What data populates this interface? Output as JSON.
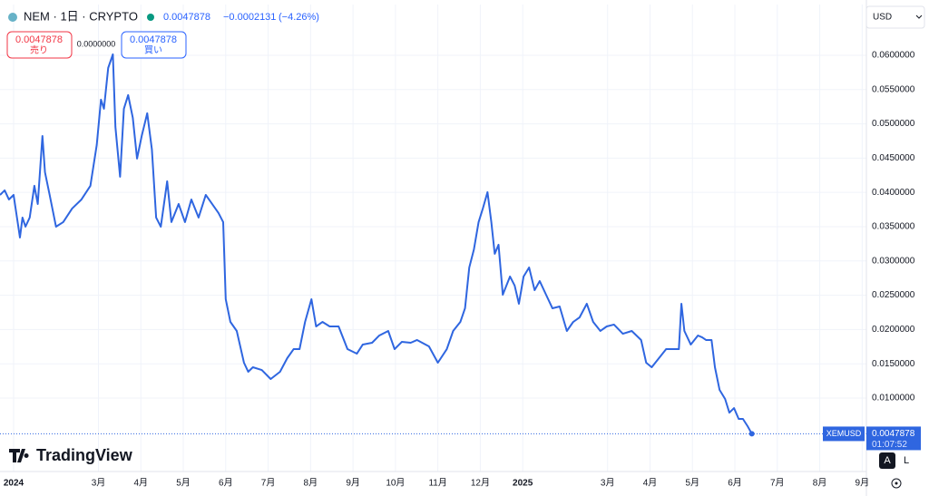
{
  "chart_data": {
    "type": "line",
    "title": "NEM · 1日 · CRYPTO",
    "change": "−0.0002131",
    "change_pct": "(−4.26%)",
    "sell_label": "売り",
    "buy_label": "買い",
    "spread": "0.0000000",
    "currency": "USD",
    "symbol_tag": "XEMUSD",
    "countdown": "01:07:52",
    "brand": "TradingView",
    "scale_buttons": [
      "A",
      "L"
    ],
    "color": "#2f66e0",
    "grid": true,
    "x": [
      -0.32,
      -0.21,
      -0.11,
      0,
      0.15,
      0.21,
      0.28,
      0.38,
      0.49,
      0.57,
      0.68,
      0.74,
      0.85,
      1,
      1.17,
      1.38,
      1.6,
      1.81,
      1.96,
      2.06,
      2.13,
      2.23,
      2.34,
      2.4,
      2.51,
      2.6,
      2.7,
      2.81,
      2.91,
      3.02,
      3.15,
      3.26,
      3.36,
      3.47,
      3.62,
      3.72,
      3.89,
      4.04,
      4.19,
      4.36,
      4.53,
      4.68,
      4.83,
      4.94,
      5,
      5.11,
      5.26,
      5.43,
      5.53,
      5.64,
      5.85,
      6.06,
      6.28,
      6.45,
      6.6,
      6.74,
      6.87,
      7.02,
      7.13,
      7.28,
      7.45,
      7.66,
      7.87,
      8.09,
      8.23,
      8.45,
      8.62,
      8.83,
      8.98,
      9.15,
      9.36,
      9.51,
      9.79,
      10,
      10.21,
      10.36,
      10.53,
      10.64,
      10.74,
      10.85,
      10.96,
      11.06,
      11.17,
      11.26,
      11.34,
      11.43,
      11.53,
      11.7,
      11.81,
      11.91,
      12.02,
      12.15,
      12.28,
      12.4,
      12.55,
      12.7,
      12.87,
      13.04,
      13.19,
      13.34,
      13.51,
      13.66,
      13.83,
      13.98,
      14.15,
      14.36,
      14.57,
      14.79,
      14.91,
      15.04,
      15.21,
      15.38,
      15.53,
      15.68,
      15.74,
      15.81,
      15.96,
      16.13,
      16.23,
      16.32,
      16.45,
      16.53,
      16.64,
      16.77,
      16.87,
      16.98,
      17.09,
      17.19,
      17.3,
      17.4
    ],
    "values": [
      0.03963,
      0.0403,
      0.03897,
      0.03963,
      0.03342,
      0.03633,
      0.035,
      0.03633,
      0.04096,
      0.03831,
      0.04823,
      0.04294,
      0.03963,
      0.035,
      0.03567,
      0.03765,
      0.03897,
      0.04096,
      0.04691,
      0.05353,
      0.0522,
      0.05816,
      0.06014,
      0.04956,
      0.04228,
      0.0522,
      0.05419,
      0.05088,
      0.04493,
      0.04823,
      0.05154,
      0.04625,
      0.03633,
      0.035,
      0.04162,
      0.03567,
      0.03831,
      0.03567,
      0.03897,
      0.03633,
      0.03963,
      0.03831,
      0.03699,
      0.03567,
      0.02442,
      0.02111,
      0.01979,
      0.01516,
      0.01384,
      0.0145,
      0.0141,
      0.01278,
      0.01384,
      0.01582,
      0.01714,
      0.01714,
      0.02111,
      0.02442,
      0.02045,
      0.02111,
      0.02045,
      0.02045,
      0.01714,
      0.01648,
      0.01781,
      0.01807,
      0.01913,
      0.01979,
      0.01714,
      0.0182,
      0.01807,
      0.01847,
      0.01754,
      0.01516,
      0.01714,
      0.01979,
      0.02111,
      0.0231,
      0.02905,
      0.0317,
      0.03567,
      0.03765,
      0.04003,
      0.03567,
      0.03104,
      0.03236,
      0.02508,
      0.02773,
      0.02641,
      0.02376,
      0.02773,
      0.02905,
      0.02574,
      0.02707,
      0.02508,
      0.0231,
      0.02336,
      0.01979,
      0.02111,
      0.02177,
      0.02376,
      0.02111,
      0.01979,
      0.02045,
      0.02072,
      0.01939,
      0.01979,
      0.01847,
      0.01516,
      0.0145,
      0.01582,
      0.01714,
      0.01714,
      0.01714,
      0.02376,
      0.01979,
      0.01781,
      0.01913,
      0.01886,
      0.01847,
      0.01847,
      0.0145,
      0.01119,
      0.00987,
      0.00788,
      0.00854,
      0.00696,
      0.00696,
      0.0059,
      0.0047878
    ],
    "xlim": [
      -0.32,
      20.1
    ],
    "ylim": [
      -0.00071,
      0.0674
    ],
    "yticks": [
      {
        "value": 0.01,
        "label": "0.0100000"
      },
      {
        "value": 0.015,
        "label": "0.0150000"
      },
      {
        "value": 0.02,
        "label": "0.0200000"
      },
      {
        "value": 0.025,
        "label": "0.0250000"
      },
      {
        "value": 0.03,
        "label": "0.0300000"
      },
      {
        "value": 0.035,
        "label": "0.0350000"
      },
      {
        "value": 0.04,
        "label": "0.0400000"
      },
      {
        "value": 0.045,
        "label": "0.0450000"
      },
      {
        "value": 0.05,
        "label": "0.0500000"
      },
      {
        "value": 0.055,
        "label": "0.0550000"
      },
      {
        "value": 0.06,
        "label": "0.0600000"
      }
    ],
    "xticks": [
      {
        "value": 0,
        "label": "2024"
      },
      {
        "value": 2,
        "label": "3月"
      },
      {
        "value": 3,
        "label": "4月"
      },
      {
        "value": 4,
        "label": "5月"
      },
      {
        "value": 5,
        "label": "6月"
      },
      {
        "value": 6,
        "label": "7月"
      },
      {
        "value": 7,
        "label": "8月"
      },
      {
        "value": 8,
        "label": "9月"
      },
      {
        "value": 9,
        "label": "10月"
      },
      {
        "value": 10,
        "label": "11月"
      },
      {
        "value": 11,
        "label": "12月"
      },
      {
        "value": 12,
        "label": "2025"
      },
      {
        "value": 14,
        "label": "3月"
      },
      {
        "value": 15,
        "label": "4月"
      },
      {
        "value": 16,
        "label": "5月"
      },
      {
        "value": 17,
        "label": "6月"
      },
      {
        "value": 18,
        "label": "7月"
      },
      {
        "value": 19,
        "label": "8月"
      },
      {
        "value": 20,
        "label": "9月"
      }
    ]
  }
}
